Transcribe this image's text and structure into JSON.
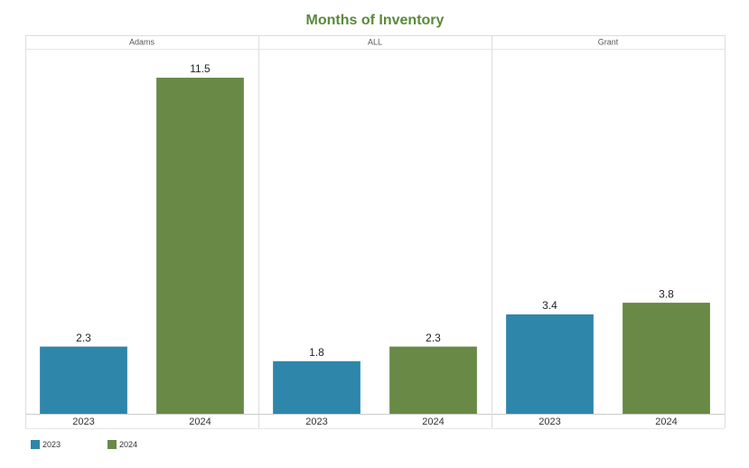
{
  "chart_data": {
    "type": "bar",
    "title": "Months of Inventory",
    "categories": [
      "Adams",
      "ALL",
      "Grant"
    ],
    "series": [
      {
        "name": "2023",
        "color": "#2e86ab",
        "values": [
          2.3,
          1.8,
          3.4
        ]
      },
      {
        "name": "2024",
        "color": "#688a46",
        "values": [
          11.5,
          2.3,
          3.8
        ]
      }
    ]
  }
}
